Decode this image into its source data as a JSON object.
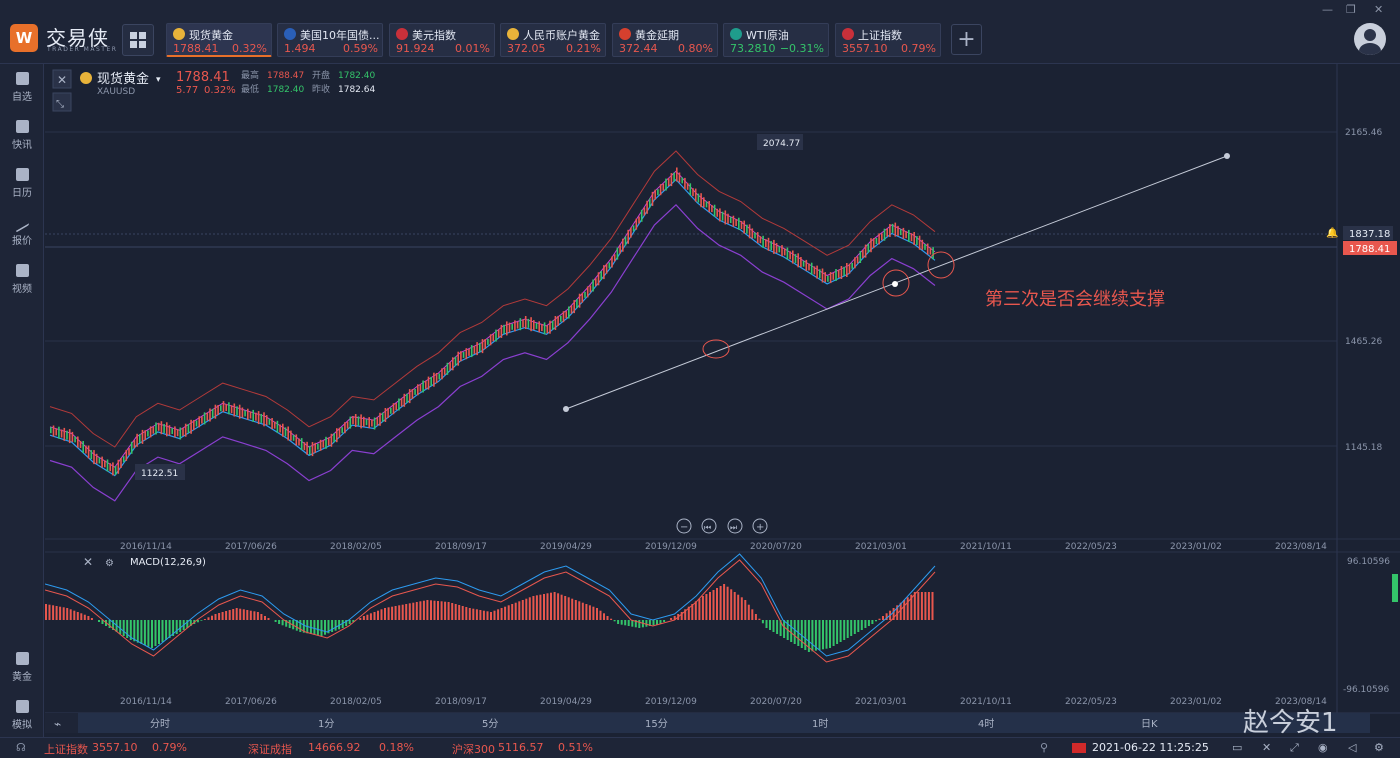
{
  "app": {
    "logo_text": "交易侠",
    "logo_sub": "TRADER MASTER"
  },
  "tickers": [
    {
      "name": "现货黄金",
      "price": "1788.41",
      "change": "0.32%",
      "dir": "up",
      "icon_color": "#e8b33a",
      "active": true
    },
    {
      "name": "美国10年国债...",
      "price": "1.494",
      "change": "0.59%",
      "dir": "up",
      "icon_color": "#2a5fb8",
      "active": false
    },
    {
      "name": "美元指数",
      "price": "91.924",
      "change": "0.01%",
      "dir": "up",
      "icon_color": "#c8303a",
      "active": false
    },
    {
      "name": "人民币账户黄金",
      "price": "372.05",
      "change": "0.21%",
      "dir": "up",
      "icon_color": "#e8b33a",
      "active": false
    },
    {
      "name": "黄金延期",
      "price": "372.44",
      "change": "0.80%",
      "dir": "up",
      "icon_color": "#d6402e",
      "active": false
    },
    {
      "name": "WTI原油",
      "price": "73.2810",
      "change": "−0.31%",
      "dir": "down",
      "icon_color": "#1f9c8c",
      "active": false
    },
    {
      "name": "上证指数",
      "price": "3557.10",
      "change": "0.79%",
      "dir": "up",
      "icon_color": "#c8303a",
      "active": false
    }
  ],
  "sidebar": {
    "top_items": [
      {
        "label": "自选"
      },
      {
        "label": "快讯"
      },
      {
        "label": "日历"
      },
      {
        "label": "报价"
      },
      {
        "label": "视频"
      }
    ],
    "bottom_items": [
      {
        "label": "黄金"
      },
      {
        "label": "模拟"
      }
    ]
  },
  "symbol": {
    "name": "现货黄金",
    "code": "XAUUSD",
    "price": "1788.41",
    "change": "5.77",
    "change_pct": "0.32%",
    "high_label": "最高",
    "high": "1788.47",
    "low_label": "最低",
    "low": "1782.40",
    "open_label": "开盘",
    "open": "1782.40",
    "prev_label": "昨收",
    "prev": "1782.64"
  },
  "chart_data": {
    "type": "line",
    "title": "",
    "price_axis_ticks": [
      "2165.46",
      "1465.26",
      "1145.18"
    ],
    "current_price_label": "1788.41",
    "alert_price_label": "1837.18",
    "date_ticks": [
      "2016/11/14",
      "2017/06/26",
      "2018/02/05",
      "2018/09/17",
      "2019/04/29",
      "2019/12/09",
      "2020/07/20",
      "2021/03/01",
      "2021/10/11",
      "2022/05/23",
      "2023/01/02",
      "2023/08/14"
    ],
    "annotations": {
      "high_label": "2074.77",
      "low_label": "1122.51",
      "text": "第三次是否会继续支撑"
    },
    "series": [
      {
        "values": [
          1260,
          1240,
          1180,
          1140,
          1230,
          1270,
          1250,
          1290,
          1330,
          1310,
          1290,
          1250,
          1200,
          1230,
          1290,
          1280,
          1330,
          1380,
          1420,
          1480,
          1510,
          1560,
          1580,
          1560,
          1610,
          1680,
          1760,
          1860,
          1960,
          2020,
          1950,
          1900,
          1870,
          1820,
          1790,
          1750,
          1710,
          1740,
          1810,
          1860,
          1830,
          1780
        ]
      }
    ],
    "macd_label": "MACD(12,26,9)",
    "macd_ticks": [
      "96.10596",
      "-96.10596"
    ],
    "macd_hist": [
      8,
      6,
      2,
      -4,
      -10,
      -14,
      -8,
      -2,
      3,
      6,
      4,
      -2,
      -6,
      -8,
      -4,
      2,
      6,
      8,
      10,
      9,
      6,
      4,
      8,
      12,
      14,
      10,
      6,
      -2,
      -4,
      -2,
      4,
      12,
      18,
      10,
      -4,
      -10,
      -16,
      -14,
      -8,
      -2,
      6,
      14
    ]
  },
  "timeframes": [
    "分时",
    "1分",
    "5分",
    "15分",
    "1时",
    "4时",
    "日K"
  ],
  "watermark": "赵今安1",
  "statusbar": {
    "items": [
      {
        "name": "上证指数",
        "price": "3557.10",
        "change": "0.79%"
      },
      {
        "name": "深证成指",
        "price": "14666.92",
        "change": "0.18%"
      },
      {
        "name": "沪深300",
        "price": "5116.57",
        "change": "0.51%"
      }
    ],
    "datetime": "2021-06-22 11:25:25"
  }
}
